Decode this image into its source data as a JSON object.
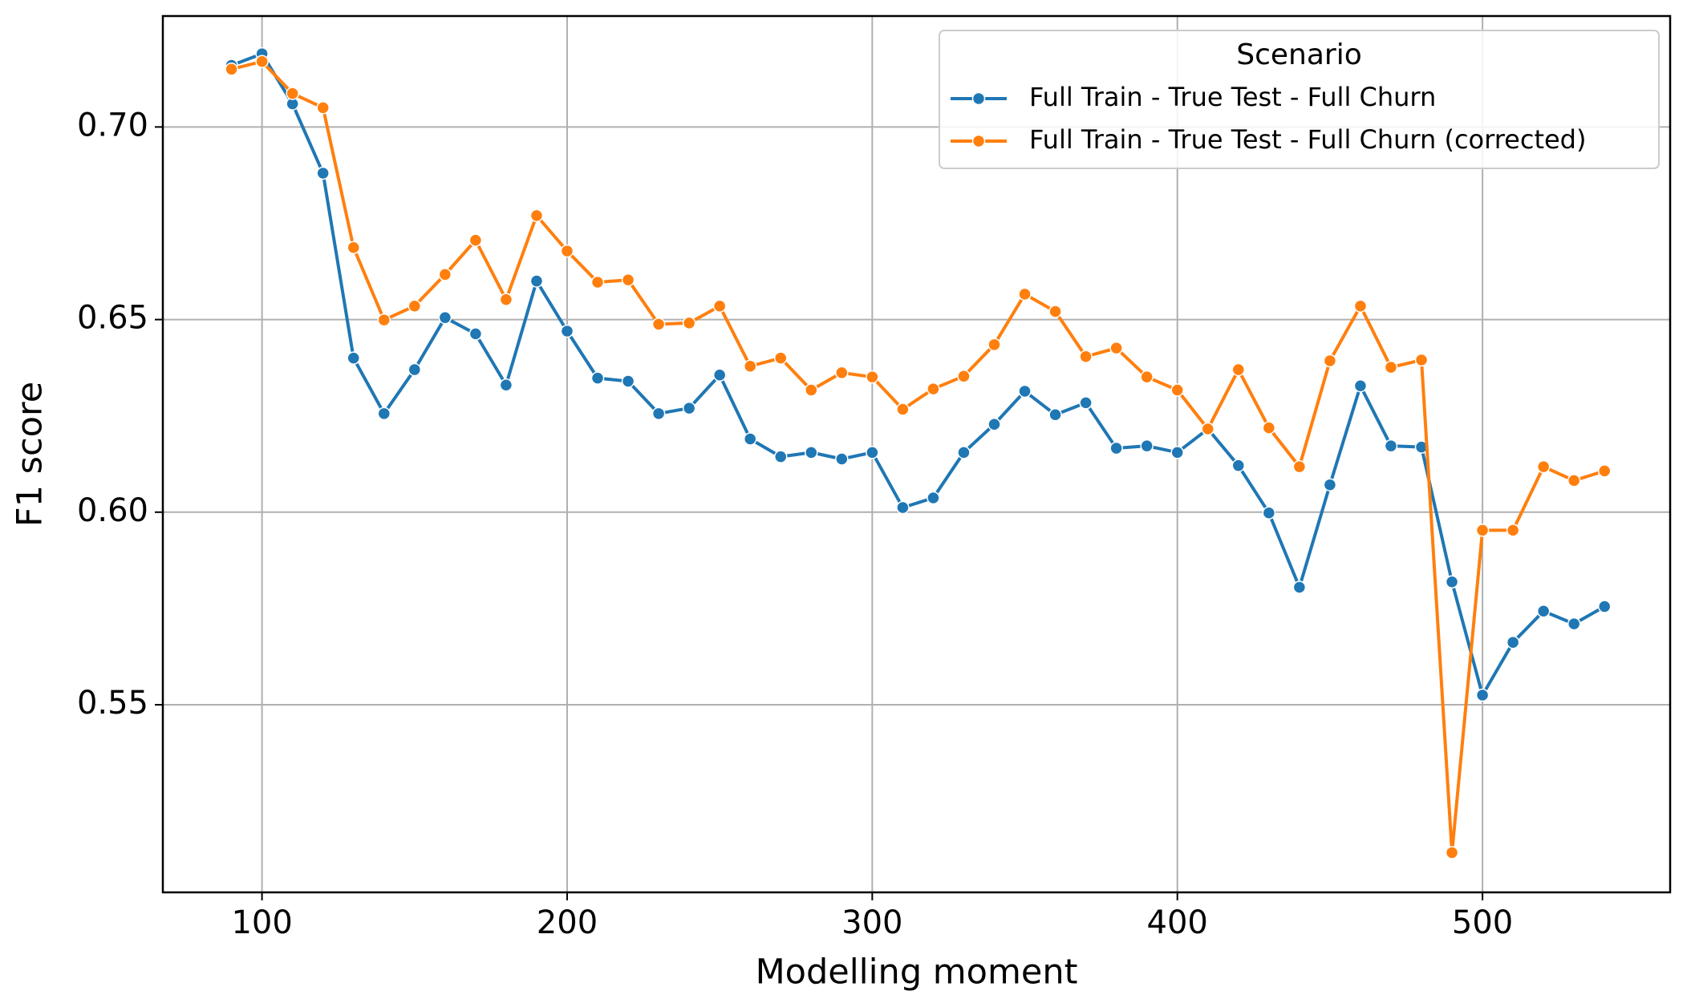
{
  "chart_data": {
    "type": "line",
    "x_label": "Modelling moment",
    "y_label": "F1 score",
    "x": [
      90,
      100,
      110,
      120,
      130,
      140,
      150,
      160,
      170,
      180,
      190,
      200,
      210,
      220,
      230,
      240,
      250,
      260,
      270,
      280,
      290,
      300,
      310,
      320,
      330,
      340,
      350,
      360,
      370,
      380,
      390,
      400,
      410,
      420,
      430,
      440,
      450,
      460,
      470,
      480,
      490,
      500,
      510,
      520,
      530,
      540
    ],
    "series": [
      {
        "name": "Full Train - True Test - Full Churn",
        "color": "#1f77b4",
        "values": [
          0.716,
          0.719,
          0.706,
          0.688,
          0.64,
          0.6256,
          0.637,
          0.6505,
          0.6463,
          0.633,
          0.66,
          0.647,
          0.6348,
          0.634,
          0.6256,
          0.627,
          0.6356,
          0.619,
          0.6144,
          0.6155,
          0.6138,
          0.6155,
          0.6012,
          0.6037,
          0.6155,
          0.6228,
          0.6314,
          0.6253,
          0.6284,
          0.6166,
          0.6172,
          0.6155,
          0.6216,
          0.6121,
          0.5998,
          0.5805,
          0.6071,
          0.6328,
          0.6172,
          0.6169,
          0.5819,
          0.5525,
          0.5662,
          0.5743,
          0.571,
          0.5755
        ]
      },
      {
        "name": "Full Train - True Test - Full Churn (corrected)",
        "color": "#ff7f0e",
        "values": [
          0.715,
          0.717,
          0.7087,
          0.705,
          0.6687,
          0.6499,
          0.6535,
          0.6617,
          0.6706,
          0.6552,
          0.677,
          0.6678,
          0.6597,
          0.6603,
          0.6488,
          0.6491,
          0.6535,
          0.6379,
          0.64,
          0.6317,
          0.6362,
          0.6351,
          0.6267,
          0.632,
          0.6353,
          0.6435,
          0.6566,
          0.6521,
          0.6404,
          0.6426,
          0.6351,
          0.6317,
          0.6216,
          0.637,
          0.6219,
          0.6118,
          0.6393,
          0.6535,
          0.6376,
          0.6395,
          0.5116,
          0.5953,
          0.5953,
          0.6118,
          0.6082,
          0.6107
        ]
      }
    ],
    "legend_title": "Scenario",
    "legend_position": "upper right",
    "xlim": [
      67.5,
      561.5
    ],
    "xticks": [
      100,
      200,
      300,
      400,
      500
    ],
    "ylim": [
      0.5013,
      0.7288
    ],
    "yticks": [
      0.55,
      {
        "value": 0.6,
        "label": "0.60"
      },
      0.65,
      {
        "value": 0.7,
        "label": "0.70"
      }
    ],
    "grid": true
  }
}
